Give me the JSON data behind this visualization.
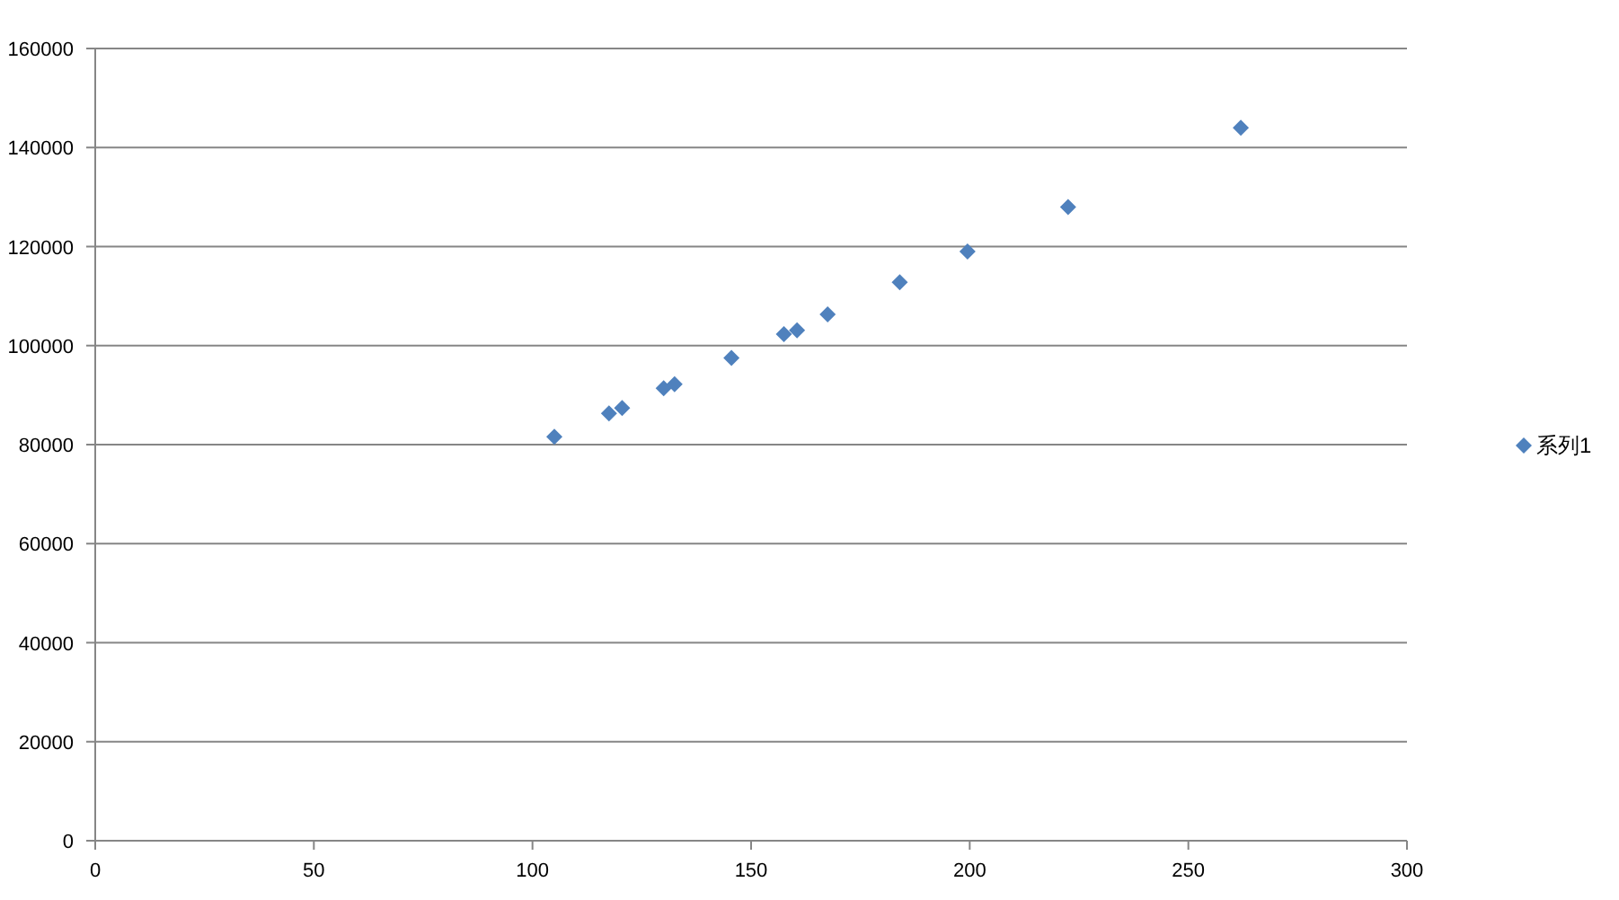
{
  "chart_data": {
    "type": "scatter",
    "marker": "diamond",
    "grid": "y",
    "legend": "right",
    "xlim": [
      0,
      300
    ],
    "xticks": [
      0,
      50,
      100,
      150,
      200,
      250,
      300
    ],
    "ylim": [
      0,
      160000
    ],
    "yticks": [
      0,
      20000,
      40000,
      60000,
      80000,
      100000,
      120000,
      140000,
      160000
    ],
    "series": [
      {
        "name": "系列1",
        "color": "#4f81bd",
        "x": [
          105,
          117.5,
          120.5,
          130,
          132.5,
          145.5,
          157.5,
          160.5,
          167.5,
          184,
          199.5,
          222.5,
          262
        ],
        "values": [
          81600,
          86300,
          87400,
          91400,
          92200,
          97500,
          102300,
          103100,
          106300,
          112800,
          119000,
          128000,
          144000
        ]
      }
    ]
  }
}
